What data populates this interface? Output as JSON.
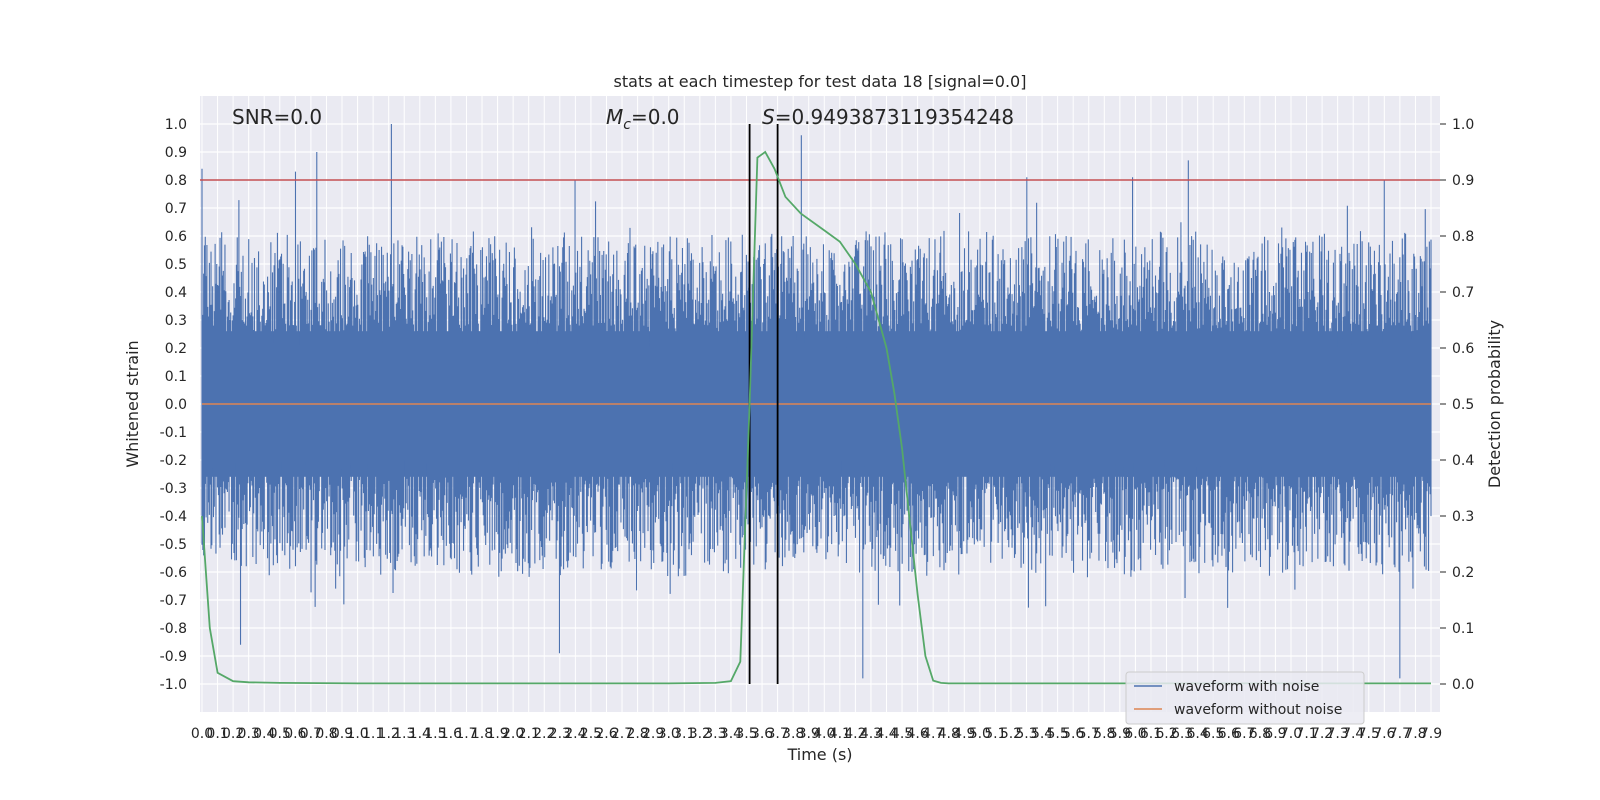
{
  "chart_data": {
    "type": "line",
    "title": "stats at each timestep for test data 18 [signal=0.0]",
    "xlabel": "Time (s)",
    "ylabel": "Whitened strain",
    "y2label": "Detection probability",
    "xlim": [
      0.0,
      7.9
    ],
    "ylim": [
      -1.1,
      1.1
    ],
    "y2lim": [
      -0.05,
      1.05
    ],
    "x_ticks": [
      "0.0",
      "0.1",
      "0.2",
      "0.3",
      "0.4",
      "0.5",
      "0.6",
      "0.7",
      "0.8",
      "0.9",
      "1.0",
      "1.1",
      "1.2",
      "1.3",
      "1.4",
      "1.5",
      "1.6",
      "1.7",
      "1.8",
      "1.9",
      "2.0",
      "2.1",
      "2.2",
      "2.3",
      "2.4",
      "2.5",
      "2.6",
      "2.7",
      "2.8",
      "2.9",
      "3.0",
      "3.1",
      "3.2",
      "3.3",
      "3.4",
      "3.5",
      "3.6",
      "3.7",
      "3.8",
      "3.9",
      "4.0",
      "4.1",
      "4.2",
      "4.3",
      "4.4",
      "4.5",
      "4.6",
      "4.7",
      "4.8",
      "4.9",
      "5.0",
      "5.1",
      "5.2",
      "5.3",
      "5.4",
      "5.5",
      "5.6",
      "5.7",
      "5.8",
      "5.9",
      "6.0",
      "6.1",
      "6.2",
      "6.3",
      "6.4",
      "6.5",
      "6.6",
      "6.7",
      "6.8",
      "6.9",
      "7.0",
      "7.1",
      "7.2",
      "7.3",
      "7.4",
      "7.5",
      "7.6",
      "7.7",
      "7.8",
      "7.9"
    ],
    "y_ticks": [
      "1.0",
      "0.9",
      "0.8",
      "0.7",
      "0.6",
      "0.5",
      "0.4",
      "0.3",
      "0.2",
      "0.1",
      "0.0",
      "-0.1",
      "-0.2",
      "-0.3",
      "-0.4",
      "-0.5",
      "-0.6",
      "-0.7",
      "-0.8",
      "-0.9",
      "-1.0"
    ],
    "y2_ticks": [
      "1.0",
      "0.9",
      "0.8",
      "0.7",
      "0.6",
      "0.5",
      "0.4",
      "0.3",
      "0.2",
      "0.1",
      "0.0"
    ],
    "threshold": 0.9,
    "vlines": [
      3.52,
      3.7
    ],
    "annotations": {
      "snr": "SNR=0.0",
      "mc_symbol": "M",
      "mc_sub": "c",
      "mc_value": "=0.0",
      "s_symbol": "S",
      "s_value": "=0.9493873119354248"
    },
    "series": [
      {
        "name": "waveform with noise",
        "color": "#4c72b0",
        "axis": "left",
        "description_values": "dense noise in roughly [-1.0, 1.0]",
        "peaks": [
          [
            0.0,
            0.84
          ],
          [
            0.6,
            0.83
          ],
          [
            0.74,
            0.9
          ],
          [
            1.22,
            1.0
          ],
          [
            2.4,
            0.8
          ],
          [
            3.85,
            0.96
          ],
          [
            5.3,
            0.81
          ],
          [
            5.98,
            0.81
          ],
          [
            6.34,
            0.87
          ],
          [
            7.6,
            0.8
          ],
          [
            0.25,
            -0.86
          ],
          [
            2.3,
            -0.89
          ],
          [
            4.25,
            -0.98
          ],
          [
            7.7,
            -0.98
          ]
        ]
      },
      {
        "name": "waveform without noise",
        "color": "#dd8452",
        "axis": "left",
        "x": [
          0.0,
          7.9
        ],
        "y": [
          0.0,
          0.0
        ]
      },
      {
        "name": "",
        "color": "#55a868",
        "axis": "right",
        "x": [
          0.0,
          0.05,
          0.1,
          0.2,
          0.3,
          0.5,
          1.0,
          2.0,
          3.0,
          3.3,
          3.4,
          3.46,
          3.52,
          3.57,
          3.62,
          3.68,
          3.75,
          3.85,
          4.0,
          4.1,
          4.2,
          4.3,
          4.4,
          4.45,
          4.5,
          4.55,
          4.6,
          4.65,
          4.7,
          4.75,
          4.8,
          5.0,
          6.0,
          7.0,
          7.9
        ],
        "y": [
          0.3,
          0.1,
          0.02,
          0.005,
          0.003,
          0.002,
          0.001,
          0.001,
          0.001,
          0.002,
          0.005,
          0.04,
          0.5,
          0.94,
          0.95,
          0.92,
          0.87,
          0.84,
          0.81,
          0.79,
          0.75,
          0.7,
          0.6,
          0.52,
          0.42,
          0.29,
          0.16,
          0.05,
          0.006,
          0.002,
          0.001,
          0.001,
          0.001,
          0.001,
          0.001
        ]
      }
    ],
    "legend": [
      "waveform with noise",
      "waveform without noise"
    ],
    "legend_position": "lower-right",
    "grid": true,
    "background": "#eaeaf2",
    "threshold_color": "#c44e52"
  }
}
